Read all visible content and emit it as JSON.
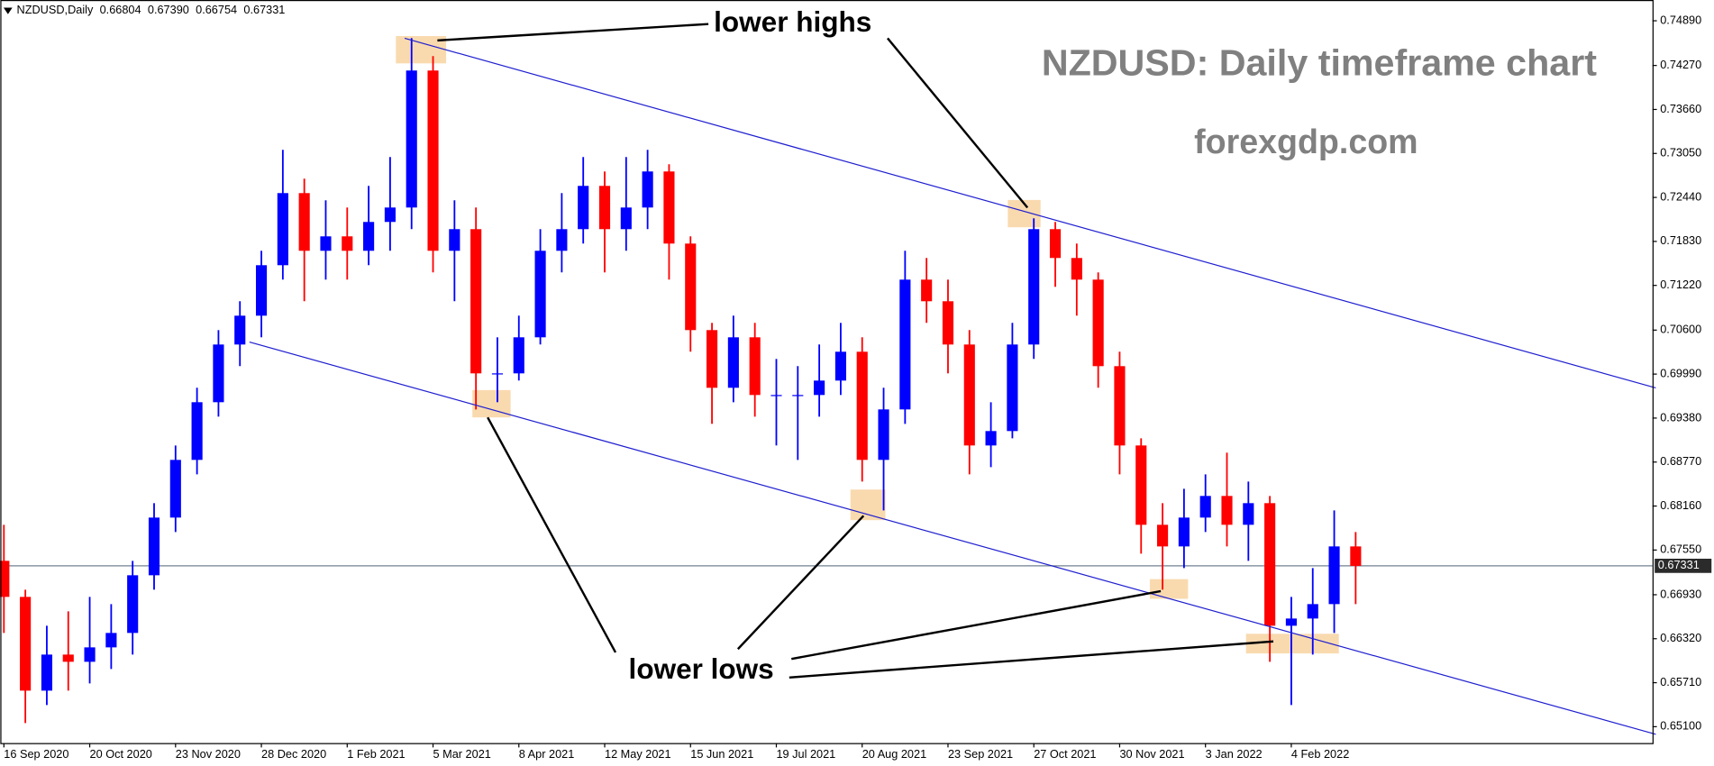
{
  "chart_data": {
    "type": "candlestick",
    "symbol": "NZDUSD,Daily",
    "header_ohlc": [
      {
        "value": 0.66804,
        "label": "0.66804"
      },
      {
        "value": 0.6739,
        "label": "0.67390"
      },
      {
        "value": 0.66754,
        "label": "0.66754"
      },
      {
        "value": 0.67331,
        "label": "0.67331"
      }
    ],
    "title": "NZDUSD: Daily timeframe chart",
    "subtitle": "forexgdp.com",
    "annotations": [
      "lower highs",
      "lower lows"
    ],
    "up_color": "#0000ff",
    "down_color": "#ff0000",
    "channel_color": "#1f1fd0",
    "x": [
      0,
      6,
      12,
      18,
      24,
      30,
      36,
      42,
      48,
      54,
      60,
      66,
      72,
      78,
      84,
      90,
      96,
      102,
      108,
      114,
      120,
      126,
      132,
      138,
      144,
      150,
      156,
      162,
      168,
      174,
      180,
      186,
      192,
      198,
      204,
      210,
      216,
      222,
      228,
      234,
      240,
      246,
      252,
      258,
      264,
      270,
      276,
      282,
      288,
      294,
      300,
      306,
      312,
      318,
      324,
      330,
      336,
      342,
      348,
      354,
      360,
      366,
      372,
      378
    ],
    "open": [
      0.674,
      0.669,
      0.656,
      0.661,
      0.66,
      0.662,
      0.664,
      0.672,
      0.68,
      0.688,
      0.696,
      0.704,
      0.708,
      0.715,
      0.725,
      0.717,
      0.719,
      0.717,
      0.721,
      0.723,
      0.742,
      0.717,
      0.72,
      0.7,
      0.7,
      0.705,
      0.717,
      0.72,
      0.726,
      0.72,
      0.723,
      0.728,
      0.718,
      0.706,
      0.698,
      0.705,
      0.697,
      0.697,
      0.697,
      0.699,
      0.703,
      0.688,
      0.695,
      0.713,
      0.71,
      0.704,
      0.69,
      0.692,
      0.704,
      0.72,
      0.716,
      0.713,
      0.701,
      0.69,
      0.679,
      0.676,
      0.68,
      0.683,
      0.679,
      0.682,
      0.665,
      0.666,
      0.668,
      0.676
    ],
    "high": [
      0.679,
      0.67,
      0.665,
      0.667,
      0.669,
      0.668,
      0.674,
      0.682,
      0.69,
      0.698,
      0.706,
      0.71,
      0.717,
      0.731,
      0.727,
      0.724,
      0.723,
      0.726,
      0.73,
      0.7465,
      0.744,
      0.724,
      0.723,
      0.705,
      0.708,
      0.72,
      0.725,
      0.73,
      0.728,
      0.73,
      0.731,
      0.729,
      0.719,
      0.707,
      0.708,
      0.707,
      0.702,
      0.701,
      0.704,
      0.707,
      0.705,
      0.698,
      0.717,
      0.716,
      0.713,
      0.706,
      0.696,
      0.707,
      0.7215,
      0.721,
      0.718,
      0.714,
      0.703,
      0.691,
      0.682,
      0.684,
      0.686,
      0.689,
      0.685,
      0.683,
      0.669,
      0.673,
      0.681,
      0.678
    ],
    "low": [
      0.664,
      0.6515,
      0.654,
      0.656,
      0.657,
      0.659,
      0.661,
      0.67,
      0.678,
      0.686,
      0.694,
      0.701,
      0.705,
      0.713,
      0.71,
      0.713,
      0.713,
      0.715,
      0.717,
      0.72,
      0.714,
      0.71,
      0.695,
      0.696,
      0.699,
      0.704,
      0.714,
      0.718,
      0.714,
      0.717,
      0.72,
      0.713,
      0.703,
      0.693,
      0.696,
      0.694,
      0.69,
      0.688,
      0.694,
      0.697,
      0.685,
      0.681,
      0.693,
      0.707,
      0.7,
      0.686,
      0.687,
      0.691,
      0.702,
      0.712,
      0.708,
      0.698,
      0.686,
      0.675,
      0.67,
      0.673,
      0.678,
      0.676,
      0.674,
      0.66,
      0.654,
      0.661,
      0.664,
      0.668
    ],
    "close": [
      0.669,
      0.656,
      0.661,
      0.66,
      0.662,
      0.664,
      0.672,
      0.68,
      0.688,
      0.696,
      0.704,
      0.708,
      0.715,
      0.725,
      0.717,
      0.719,
      0.717,
      0.721,
      0.723,
      0.742,
      0.717,
      0.72,
      0.7,
      0.7,
      0.705,
      0.717,
      0.72,
      0.726,
      0.72,
      0.723,
      0.728,
      0.718,
      0.706,
      0.698,
      0.705,
      0.697,
      0.697,
      0.697,
      0.699,
      0.703,
      0.688,
      0.695,
      0.713,
      0.71,
      0.704,
      0.69,
      0.692,
      0.704,
      0.72,
      0.716,
      0.713,
      0.701,
      0.69,
      0.679,
      0.676,
      0.68,
      0.683,
      0.679,
      0.682,
      0.665,
      0.666,
      0.668,
      0.676,
      0.6733
    ],
    "current_price": 0.67331,
    "xlim": [
      -1,
      461
    ],
    "xticks": [
      {
        "value": 0,
        "label": "16 Sep 2020"
      },
      {
        "value": 24,
        "label": "20 Oct 2020"
      },
      {
        "value": 48,
        "label": "23 Nov 2020"
      },
      {
        "value": 72,
        "label": "28 Dec 2020"
      },
      {
        "value": 96,
        "label": "1 Feb 2021"
      },
      {
        "value": 120,
        "label": "5 Mar 2021"
      },
      {
        "value": 144,
        "label": "8 Apr 2021"
      },
      {
        "value": 168,
        "label": "12 May 2021"
      },
      {
        "value": 192,
        "label": "15 Jun 2021"
      },
      {
        "value": 216,
        "label": "19 Jul 2021"
      },
      {
        "value": 240,
        "label": "20 Aug 2021"
      },
      {
        "value": 264,
        "label": "23 Sep 2021"
      },
      {
        "value": 288,
        "label": "27 Oct 2021"
      },
      {
        "value": 312,
        "label": "30 Nov 2021"
      },
      {
        "value": 336,
        "label": "3 Jan 2022"
      },
      {
        "value": 360,
        "label": "4 Feb 2022"
      }
    ],
    "ylim": [
      0.64873,
      0.75178
    ],
    "yticks": [
      {
        "value": 0.7489,
        "label": "0.74890"
      },
      {
        "value": 0.7427,
        "label": "0.74270"
      },
      {
        "value": 0.7366,
        "label": "0.73660"
      },
      {
        "value": 0.7305,
        "label": "0.73050"
      },
      {
        "value": 0.7244,
        "label": "0.72440"
      },
      {
        "value": 0.7183,
        "label": "0.71830"
      },
      {
        "value": 0.7122,
        "label": "0.71220"
      },
      {
        "value": 0.706,
        "label": "0.70600"
      },
      {
        "value": 0.6999,
        "label": "0.69990"
      },
      {
        "value": 0.6938,
        "label": "0.69380"
      },
      {
        "value": 0.6877,
        "label": "0.68770"
      },
      {
        "value": 0.6816,
        "label": "0.68160"
      },
      {
        "value": 0.6755,
        "label": "0.67550"
      },
      {
        "value": 0.6693,
        "label": "0.66930"
      },
      {
        "value": 0.6632,
        "label": "0.66320"
      },
      {
        "value": 0.6571,
        "label": "0.65710"
      },
      {
        "value": 0.651,
        "label": "0.65100"
      }
    ]
  }
}
